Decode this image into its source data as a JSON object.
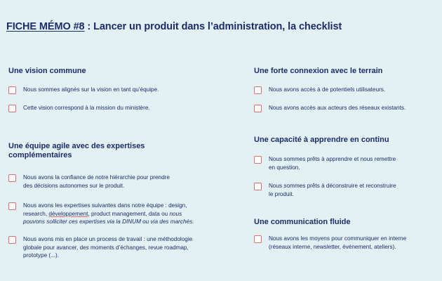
{
  "header": {
    "title_prefix": "FICHE MÉMO #8",
    "title_rest": " : Lancer un produit dans l’administration, la checklist"
  },
  "sections": {
    "vision": {
      "title": "Une vision commune",
      "items": [
        "Nous sommes alignés sur la vision en tant qu’équipe.",
        "Cette vision correspond à la mission du ministère."
      ]
    },
    "equipe": {
      "title_line1": "Une équipe agile avec des expertises",
      "title_line2": "complémentaires",
      "items": [
        {
          "line1": "Nous avons la confiance de notre hiérarchie pour prendre",
          "line2": "des décisions autonomes sur le produit."
        },
        {
          "line1": "Nous avons les expertises suivantes dans notre équipe : design,",
          "line2_pre": "research, ",
          "line2_ul": "développement",
          "line2_post": ", product management, data ou ",
          "line2_it": "nous",
          "line3_it": "pouvons solliciter ces expertises via la DINUM ou via des marchés."
        },
        {
          "line1": "Nous avons mis en place un process de travail : une méthodologie",
          "line2": "globale pour avancer, des moments d’échanges, revue roadmap,",
          "line3": "prototype (...)."
        }
      ]
    },
    "terrain": {
      "title": "Une forte connexion avec le terrain",
      "items": [
        "Nous avons accès à de potentiels utilisateurs.",
        "Nous avons accès aux acteurs des réseaux existants."
      ]
    },
    "apprendre": {
      "title": "Une capacité à apprendre en continu",
      "items": [
        {
          "line1": "Nous sommes prêts à apprendre et nous remettre",
          "line2": "en question."
        },
        {
          "line1": "Nous sommes prêts à déconstruire et reconstruire",
          "line2": "le produit."
        }
      ]
    },
    "communication": {
      "title": "Une communication fluide",
      "items": [
        {
          "line1": "Nous avons les moyens pour communiquer en interne",
          "line2": "(réseaux interne, newsletter, événement, ateliers)."
        }
      ]
    }
  },
  "colors": {
    "background": "#e3f1f4",
    "text": "#1d2b6b",
    "checkbox_border": "#d9706b"
  }
}
